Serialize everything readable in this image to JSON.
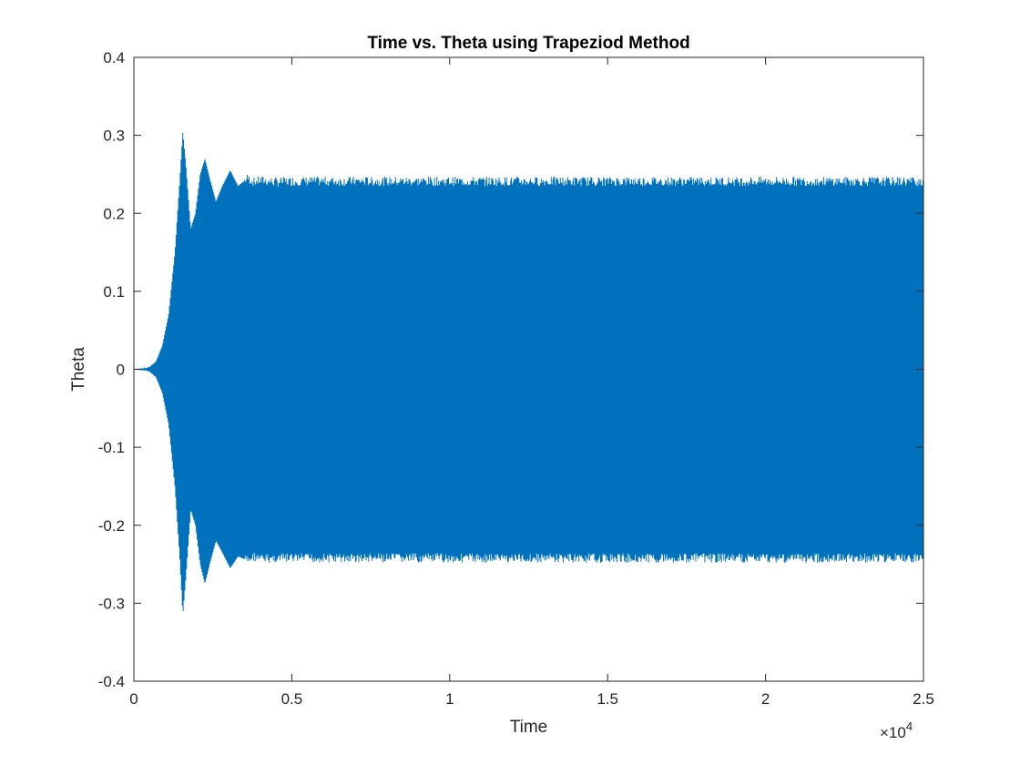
{
  "chart_data": {
    "type": "line",
    "title": "Time vs. Theta using Trapeziod Method",
    "xlabel": "Time",
    "ylabel": "Theta",
    "xlim": [
      0,
      25000
    ],
    "ylim": [
      -0.4,
      0.4
    ],
    "x_ticks": [
      0,
      5000,
      10000,
      15000,
      20000,
      25000
    ],
    "x_tick_labels": [
      "0",
      "0.5",
      "1",
      "1.5",
      "2",
      "2.5"
    ],
    "x_exponent_prefix": "×10",
    "x_exponent_power": "4",
    "y_ticks": [
      -0.4,
      -0.3,
      -0.2,
      -0.1,
      0,
      0.1,
      0.2,
      0.3,
      0.4
    ],
    "y_tick_labels": [
      "-0.4",
      "-0.3",
      "-0.2",
      "-0.1",
      "0",
      "0.1",
      "0.2",
      "0.3",
      "0.4"
    ],
    "grid": false,
    "series_color": "#0072BD",
    "envelope": {
      "time": [
        0,
        300,
        500,
        700,
        900,
        1100,
        1300,
        1450,
        1550,
        1650,
        1800,
        1950,
        2100,
        2250,
        2400,
        2600,
        2800,
        3050,
        3300,
        3600,
        3800,
        4000,
        4500,
        5000,
        10000,
        15000,
        20000,
        25000
      ],
      "upper": [
        0,
        0.0005,
        0.003,
        0.01,
        0.03,
        0.07,
        0.15,
        0.24,
        0.305,
        0.26,
        0.18,
        0.2,
        0.25,
        0.27,
        0.245,
        0.215,
        0.235,
        0.255,
        0.235,
        0.245,
        0.24,
        0.242,
        0.24,
        0.241,
        0.241,
        0.241,
        0.241,
        0.241
      ],
      "lower": [
        0,
        -0.0005,
        -0.003,
        -0.01,
        -0.03,
        -0.07,
        -0.15,
        -0.24,
        -0.315,
        -0.265,
        -0.18,
        -0.2,
        -0.25,
        -0.275,
        -0.25,
        -0.22,
        -0.235,
        -0.255,
        -0.24,
        -0.245,
        -0.24,
        -0.243,
        -0.242,
        -0.242,
        -0.242,
        -0.242,
        -0.242,
        -0.242
      ]
    }
  }
}
